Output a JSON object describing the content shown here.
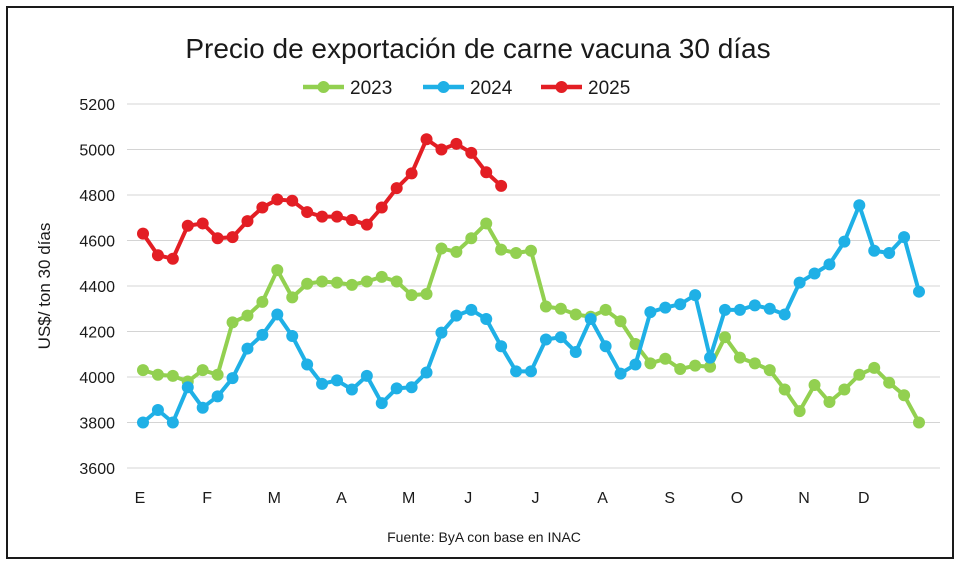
{
  "chart_data": {
    "type": "line",
    "title": "Precio de exportación de carne vacuna 30 días",
    "ylabel": "US$/ ton 30 días",
    "xlabel": "",
    "source": "Fuente: ByA con base en INAC",
    "ylim": [
      3600,
      5200
    ],
    "yticks": [
      "5200",
      "5000",
      "4800",
      "4600",
      "4400",
      "4200",
      "4000",
      "3800",
      "3600"
    ],
    "month_labels": [
      "E",
      "F",
      "M",
      "A",
      "M",
      "J",
      "J",
      "A",
      "S",
      "O",
      "N",
      "D"
    ],
    "x_range": [
      1,
      53
    ],
    "grid": true,
    "legend_position": "top",
    "series": [
      {
        "name": "2023",
        "color": "#92d050",
        "x": [
          1,
          2,
          3,
          4,
          5,
          6,
          7,
          8,
          9,
          10,
          11,
          12,
          13,
          14,
          15,
          16,
          17,
          18,
          19,
          20,
          21,
          22,
          23,
          24,
          25,
          26,
          27,
          28,
          29,
          30,
          31,
          32,
          33,
          34,
          35,
          36,
          37,
          38,
          39,
          40,
          41,
          42,
          43,
          44,
          45,
          46,
          47,
          48,
          49,
          50,
          51,
          52,
          53
        ],
        "values": [
          4030,
          4010,
          4005,
          3980,
          4030,
          4010,
          4240,
          4270,
          4330,
          4470,
          4350,
          4410,
          4420,
          4415,
          4405,
          4420,
          4440,
          4420,
          4360,
          4365,
          4565,
          4550,
          4610,
          4675,
          4560,
          4545,
          4555,
          4310,
          4300,
          4275,
          4265,
          4295,
          4245,
          4145,
          4060,
          4080,
          4035,
          4050,
          4045,
          4175,
          4085,
          4060,
          4030,
          3945,
          3850,
          3965,
          3890,
          3945,
          4010,
          4040,
          3975,
          3920,
          3800
        ]
      },
      {
        "name": "2024",
        "color": "#1fb0e6",
        "x": [
          1,
          2,
          3,
          4,
          5,
          6,
          7,
          8,
          9,
          10,
          11,
          12,
          13,
          14,
          15,
          16,
          17,
          18,
          19,
          20,
          21,
          22,
          23,
          24,
          25,
          26,
          27,
          28,
          29,
          30,
          31,
          32,
          33,
          34,
          35,
          36,
          37,
          38,
          39,
          40,
          41,
          42,
          43,
          44,
          45,
          46,
          47,
          48,
          49,
          50,
          51,
          52,
          53
        ],
        "values": [
          3800,
          3855,
          3800,
          3955,
          3865,
          3915,
          3995,
          4125,
          4185,
          4275,
          4180,
          4055,
          3970,
          3985,
          3945,
          4005,
          3885,
          3950,
          3955,
          4020,
          4195,
          4270,
          4295,
          4255,
          4135,
          4025,
          4025,
          4165,
          4175,
          4110,
          4255,
          4135,
          4015,
          4055,
          4285,
          4305,
          4320,
          4360,
          4085,
          4295,
          4295,
          4315,
          4300,
          4275,
          4415,
          4455,
          4495,
          4595,
          4755,
          4555,
          4545,
          4615,
          4375
        ]
      },
      {
        "name": "2025",
        "color": "#e31e24",
        "x": [
          1,
          2,
          3,
          4,
          5,
          6,
          7,
          8,
          9,
          10,
          11,
          12,
          13,
          14,
          15,
          16,
          17,
          18,
          19,
          20,
          21,
          22,
          23,
          24,
          25
        ],
        "values": [
          4630,
          4535,
          4520,
          4665,
          4675,
          4610,
          4615,
          4685,
          4745,
          4780,
          4775,
          4725,
          4705,
          4705,
          4690,
          4670,
          4745,
          4830,
          4895,
          5045,
          5000,
          5025,
          4985,
          4900,
          4840
        ]
      }
    ]
  }
}
